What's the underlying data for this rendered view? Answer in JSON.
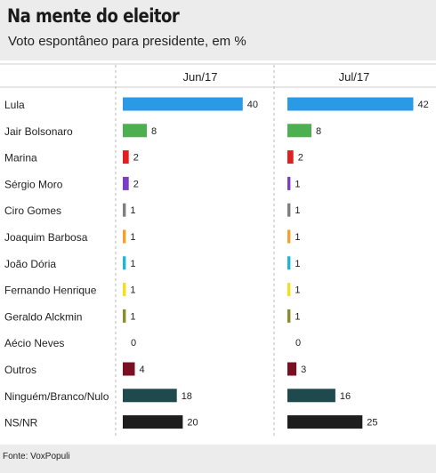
{
  "header": {
    "title": "Na mente do eleitor",
    "subtitle": "Voto espontâneo para presidente, em %"
  },
  "footer": {
    "source": "Fonte: VoxPopuli"
  },
  "chart_data": {
    "type": "bar",
    "orientation": "horizontal",
    "unit": "%",
    "categories": [
      "Lula",
      "Jair Bolsonaro",
      "Marina",
      "Sérgio Moro",
      "Ciro Gomes",
      "Joaquim Barbosa",
      "João Dória",
      "Fernando Henrique",
      "Geraldo Alckmin",
      "Aécio Neves",
      "Outros",
      "Ninguém/Branco/Nulo",
      "NS/NR"
    ],
    "colors": [
      "#2a9ae6",
      "#4caf50",
      "#e02020",
      "#7b3fc4",
      "#7f7f7f",
      "#f2a02e",
      "#1fb6d6",
      "#f2e01e",
      "#8c8c2c",
      "#999999",
      "#7a0f22",
      "#1e4a4d",
      "#1e1e1e"
    ],
    "series": [
      {
        "name": "Jun/17",
        "values": [
          40,
          8,
          2,
          2,
          1,
          1,
          1,
          1,
          1,
          0,
          4,
          18,
          20
        ]
      },
      {
        "name": "Jul/17",
        "values": [
          42,
          8,
          2,
          1,
          1,
          1,
          1,
          1,
          1,
          0,
          3,
          16,
          25
        ]
      }
    ],
    "xlim": [
      0,
      42
    ],
    "grid": false,
    "legend": "column headers at top"
  }
}
